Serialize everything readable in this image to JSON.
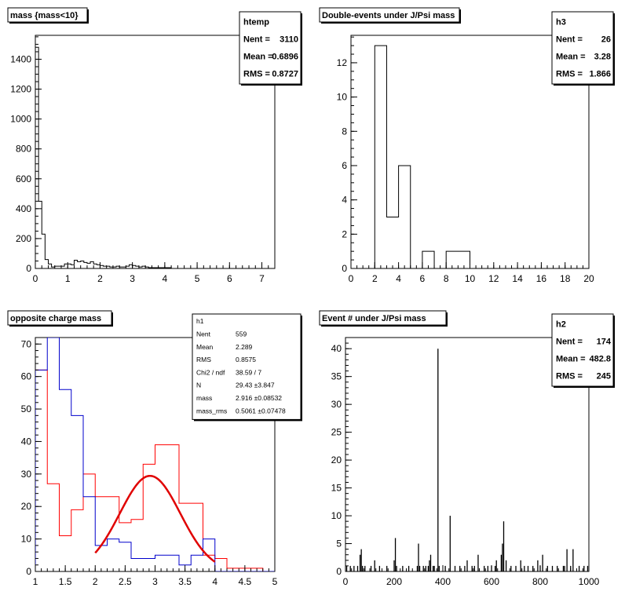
{
  "pads": [
    {
      "id": "mass",
      "title": "mass {mass<10}",
      "stats": {
        "name": "htemp",
        "rows": [
          {
            "label": "Nent",
            "value": "3110"
          },
          {
            "label": "Mean",
            "value": "0.6896"
          },
          {
            "label": "RMS",
            "value": "0.8727"
          }
        ]
      },
      "xticks": [
        "0",
        "1",
        "2",
        "3",
        "4",
        "5",
        "6",
        "7"
      ],
      "yticks": [
        "0",
        "200",
        "400",
        "600",
        "800",
        "1000",
        "1200",
        "1400"
      ]
    },
    {
      "id": "double",
      "title": "Double-events under J/Psi mass",
      "stats": {
        "name": "h3",
        "rows": [
          {
            "label": "Nent",
            "value": "26"
          },
          {
            "label": "Mean",
            "value": "3.28"
          },
          {
            "label": "RMS",
            "value": "1.866"
          }
        ]
      },
      "xticks": [
        "0",
        "2",
        "4",
        "6",
        "8",
        "10",
        "12",
        "14",
        "16",
        "18",
        "20"
      ],
      "yticks": [
        "0",
        "2",
        "4",
        "6",
        "8",
        "10",
        "12"
      ]
    },
    {
      "id": "opposite",
      "title": "opposite charge mass",
      "stats": {
        "name": "h1",
        "rows": [
          {
            "label": "Nent",
            "value": "559"
          },
          {
            "label": "Mean",
            "value": "2.289"
          },
          {
            "label": "RMS",
            "value": "0.8575"
          },
          {
            "label": "Chi2 / ndf",
            "value": "38.59 / 7"
          },
          {
            "label": "N",
            "value": "29.43  ±3.847"
          },
          {
            "label": "mass",
            "value": "2.916  ±0.08532"
          },
          {
            "label": "mass_rms",
            "value": "0.5061  ±0.07478"
          }
        ]
      },
      "xticks": [
        "1",
        "1.5",
        "2",
        "2.5",
        "3",
        "3.5",
        "4",
        "4.5",
        "5"
      ],
      "yticks": [
        "0",
        "10",
        "20",
        "30",
        "40",
        "50",
        "60",
        "70"
      ]
    },
    {
      "id": "event",
      "title": "Event # under J/Psi mass",
      "stats": {
        "name": "h2",
        "rows": [
          {
            "label": "Nent",
            "value": "174"
          },
          {
            "label": "Mean",
            "value": "482.8"
          },
          {
            "label": "RMS",
            "value": "245"
          }
        ]
      },
      "xticks": [
        "0",
        "200",
        "400",
        "600",
        "800",
        "1000"
      ],
      "yticks": [
        "0",
        "5",
        "10",
        "15",
        "20",
        "25",
        "30",
        "35",
        "40"
      ]
    }
  ],
  "colors": {
    "red": "#ff0000",
    "blue": "#0000cc",
    "black": "#000000",
    "fit": "#e00000"
  },
  "chart_data": [
    {
      "type": "bar",
      "title": "mass {mass<10}",
      "xlim": [
        0,
        7.4
      ],
      "ylim": [
        0,
        1560
      ],
      "bins_x": [
        0.1,
        0.2,
        0.3,
        0.4,
        0.5,
        0.6,
        0.7,
        0.8,
        0.9,
        1.0,
        1.1,
        1.2,
        1.3,
        1.4,
        1.5,
        1.6,
        1.7,
        1.8,
        1.9,
        2.0,
        2.1,
        2.2,
        2.3,
        2.4,
        2.5,
        2.6,
        2.7,
        2.8,
        2.9,
        3.0,
        3.1,
        3.2,
        3.3,
        3.4,
        3.5,
        3.6,
        3.7,
        3.8,
        3.9,
        4.0,
        4.1,
        4.2
      ],
      "values": [
        1480,
        450,
        230,
        60,
        30,
        10,
        15,
        15,
        15,
        30,
        30,
        25,
        55,
        45,
        50,
        40,
        35,
        45,
        30,
        25,
        20,
        15,
        15,
        10,
        10,
        15,
        10,
        10,
        15,
        25,
        20,
        15,
        10,
        15,
        10,
        5,
        5,
        5,
        5,
        5,
        5,
        5
      ]
    },
    {
      "type": "bar",
      "title": "Double-events under J/Psi mass",
      "xlim": [
        0,
        20
      ],
      "ylim": [
        0,
        13.6
      ],
      "bin_edges": [
        0,
        1,
        2,
        3,
        4,
        5,
        6,
        7,
        8,
        9,
        10,
        11,
        12,
        13,
        14,
        15,
        16,
        17,
        18,
        19,
        20
      ],
      "values": [
        0,
        0,
        13,
        3,
        6,
        0,
        1,
        0,
        1,
        1,
        0,
        0,
        0,
        0,
        0,
        0,
        0,
        0,
        0,
        0
      ]
    },
    {
      "type": "line",
      "title": "opposite charge mass",
      "xlim": [
        1,
        5
      ],
      "ylim": [
        0,
        72
      ],
      "bin_width": 0.2,
      "series": [
        {
          "color": "red",
          "x": [
            1.0,
            1.2,
            1.4,
            1.6,
            1.8,
            2.0,
            2.2,
            2.4,
            2.6,
            2.8,
            3.0,
            3.2,
            3.4,
            3.6,
            3.8,
            4.0,
            4.2,
            4.4,
            4.6,
            4.8
          ],
          "values": [
            62,
            27,
            11,
            19,
            30,
            23,
            23,
            15,
            16,
            33,
            39,
            39,
            21,
            21,
            5,
            4,
            1,
            1,
            1,
            0
          ]
        },
        {
          "color": "blue",
          "x": [
            1.0,
            1.2,
            1.4,
            1.6,
            1.8,
            2.0,
            2.2,
            2.4,
            2.6,
            2.8,
            3.0,
            3.2,
            3.4,
            3.6,
            3.8,
            4.0,
            4.2,
            4.4,
            4.6,
            4.8
          ],
          "values": [
            62,
            72,
            56,
            48,
            23,
            8,
            10,
            9,
            4,
            4,
            5,
            5,
            2,
            5,
            10,
            0,
            0,
            0,
            0,
            0
          ]
        }
      ],
      "fit": {
        "N": 29.43,
        "mean": 2.916,
        "sigma": 0.5061,
        "x_range": [
          2.0,
          4.0
        ]
      }
    },
    {
      "type": "bar",
      "title": "Event # under J/Psi mass",
      "xlim": [
        0,
        1000
      ],
      "ylim": [
        0,
        42
      ],
      "x": [
        5,
        20,
        35,
        50,
        60,
        65,
        70,
        80,
        105,
        120,
        140,
        170,
        200,
        205,
        210,
        235,
        260,
        295,
        300,
        305,
        320,
        330,
        340,
        345,
        350,
        360,
        365,
        380,
        385,
        410,
        430,
        450,
        470,
        490,
        500,
        520,
        530,
        545,
        570,
        585,
        600,
        615,
        620,
        640,
        645,
        650,
        660,
        680,
        700,
        720,
        735,
        750,
        770,
        790,
        800,
        810,
        830,
        850,
        870,
        895,
        900,
        910,
        925,
        935,
        960,
        980,
        995
      ],
      "values": [
        1,
        1,
        1,
        1,
        3,
        4,
        1,
        1,
        1,
        2,
        1,
        1,
        2,
        6,
        1,
        1,
        1,
        1,
        5,
        1,
        1,
        1,
        1,
        2,
        3,
        1,
        1,
        40,
        1,
        1,
        10,
        1,
        1,
        1,
        2,
        1,
        1,
        3,
        1,
        1,
        1,
        1,
        2,
        3,
        5,
        9,
        2,
        1,
        1,
        2,
        1,
        1,
        1,
        2,
        1,
        3,
        1,
        1,
        1,
        1,
        1,
        4,
        1,
        4,
        1,
        1,
        1
      ]
    }
  ]
}
